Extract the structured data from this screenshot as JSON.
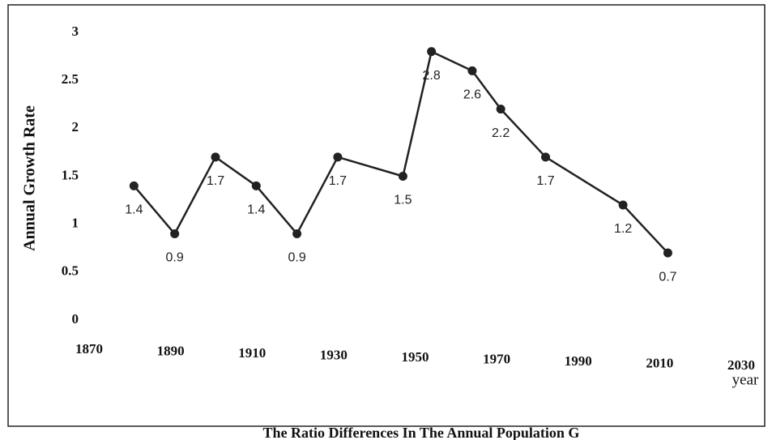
{
  "chart_data": {
    "type": "line",
    "title": "The Ratio Differences In The Annual Population G",
    "x_label": "year",
    "y_label": "Annual Growth Rate",
    "x": [
      1881,
      1891,
      1901,
      1911,
      1921,
      1931,
      1947,
      1954,
      1964,
      1971,
      1982,
      2001,
      2012
    ],
    "series": [
      {
        "name": "Annual Growth Rate",
        "color": "#222222",
        "values": [
          1.4,
          0.9,
          1.7,
          1.4,
          0.9,
          1.7,
          1.5,
          2.8,
          2.6,
          2.2,
          1.7,
          1.2,
          0.7
        ]
      }
    ],
    "xlim": [
      1870,
      2030
    ],
    "xticks": [
      1870,
      1890,
      1910,
      1930,
      1950,
      1970,
      1990,
      2010,
      2030
    ],
    "ylim": [
      0,
      3
    ],
    "yticks": [
      0,
      0.5,
      1,
      1.5,
      2,
      2.5,
      3
    ],
    "grid": false
  }
}
